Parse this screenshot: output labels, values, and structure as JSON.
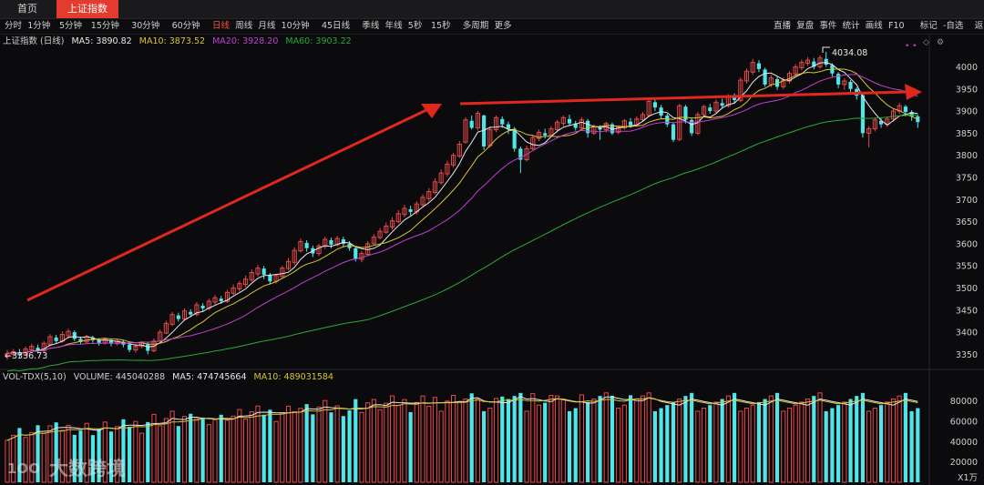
{
  "tabs": {
    "home": "首页",
    "active": "上证指数"
  },
  "periods": [
    "分时",
    "1分钟",
    "5分钟",
    "15分钟",
    "30分钟",
    "60分钟",
    "日线",
    "周线",
    "月线",
    "10分钟",
    "45日线",
    "季线",
    "年线",
    "5秒",
    "15秒",
    "多周期",
    "更多"
  ],
  "selected_period": "日线",
  "right_tools": [
    "直播",
    "复盘",
    "事件",
    "统计",
    "画线",
    "F10",
    "标记",
    "-自选",
    "返回"
  ],
  "main_legend": {
    "title": "上证指数 (日线)",
    "ma5": "MA5: 3890.82",
    "ma10": "MA10: 3873.52",
    "ma20": "MA20: 3928.20",
    "ma60": "MA60: 3903.22"
  },
  "volume_legend": {
    "title": "VOL-TDX(5,10)",
    "volume": "VOLUME: 445040288",
    "ma5": "MA5: 474745664",
    "ma10": "MA10: 489031584"
  },
  "annotations": {
    "high": "4034.08",
    "low": "3336.73"
  },
  "price_axis": [
    "4000",
    "3950",
    "3900",
    "3850",
    "3800",
    "3750",
    "3700",
    "3650",
    "3600",
    "3550",
    "3500",
    "3450",
    "3400",
    "3350"
  ],
  "volume_axis": [
    "80000",
    "60000",
    "40000",
    "20000"
  ],
  "volume_unit": "X1万",
  "watermark": "大数跨境",
  "colors": {
    "up": "#e84848",
    "down": "#4fe6ea",
    "ma5": "#e8e8e8",
    "ma10": "#d8c431",
    "ma20": "#c23ed0",
    "ma60": "#2aa83a",
    "arrow": "#e0281e",
    "tab_active": "#e33b2e"
  },
  "chart_data": {
    "type": "candlestick",
    "title": "上证指数 (日线)",
    "ylim": [
      3320,
      4040
    ],
    "high": 4034.08,
    "low": 3336.73,
    "series": [
      {
        "name": "MA5",
        "value": 3890.82
      },
      {
        "name": "MA10",
        "value": 3873.52
      },
      {
        "name": "MA20",
        "value": 3928.2
      },
      {
        "name": "MA60",
        "value": 3903.22
      }
    ],
    "candles_approx": [
      [
        3345,
        3352,
        3360,
        3338
      ],
      [
        3350,
        3356,
        3362,
        3344
      ],
      [
        3355,
        3348,
        3362,
        3342
      ],
      [
        3348,
        3362,
        3368,
        3346
      ],
      [
        3360,
        3368,
        3374,
        3356
      ],
      [
        3365,
        3358,
        3372,
        3352
      ],
      [
        3358,
        3375,
        3380,
        3355
      ],
      [
        3372,
        3390,
        3396,
        3368
      ],
      [
        3388,
        3380,
        3394,
        3374
      ],
      [
        3380,
        3395,
        3402,
        3376
      ],
      [
        3392,
        3402,
        3408,
        3386
      ],
      [
        3400,
        3385,
        3404,
        3380
      ],
      [
        3385,
        3378,
        3390,
        3372
      ],
      [
        3378,
        3390,
        3394,
        3374
      ],
      [
        3388,
        3382,
        3392,
        3376
      ],
      [
        3382,
        3376,
        3386,
        3370
      ],
      [
        3376,
        3384,
        3388,
        3372
      ],
      [
        3382,
        3374,
        3386,
        3368
      ],
      [
        3374,
        3380,
        3384,
        3370
      ],
      [
        3378,
        3372,
        3382,
        3366
      ],
      [
        3372,
        3360,
        3378,
        3355
      ],
      [
        3360,
        3368,
        3374,
        3354
      ],
      [
        3368,
        3376,
        3380,
        3364
      ],
      [
        3374,
        3358,
        3378,
        3350
      ],
      [
        3358,
        3380,
        3386,
        3355
      ],
      [
        3380,
        3400,
        3406,
        3378
      ],
      [
        3398,
        3420,
        3426,
        3396
      ],
      [
        3418,
        3440,
        3446,
        3414
      ],
      [
        3438,
        3430,
        3444,
        3424
      ],
      [
        3430,
        3448,
        3454,
        3426
      ],
      [
        3446,
        3440,
        3452,
        3434
      ],
      [
        3440,
        3462,
        3468,
        3436
      ],
      [
        3460,
        3454,
        3466,
        3448
      ],
      [
        3454,
        3470,
        3476,
        3450
      ],
      [
        3468,
        3478,
        3484,
        3462
      ],
      [
        3476,
        3470,
        3482,
        3464
      ],
      [
        3470,
        3490,
        3496,
        3466
      ],
      [
        3488,
        3500,
        3508,
        3484
      ],
      [
        3498,
        3510,
        3516,
        3492
      ],
      [
        3508,
        3520,
        3528,
        3502
      ],
      [
        3518,
        3535,
        3542,
        3514
      ],
      [
        3532,
        3545,
        3552,
        3526
      ],
      [
        3544,
        3530,
        3550,
        3520
      ],
      [
        3530,
        3515,
        3534,
        3508
      ],
      [
        3515,
        3528,
        3532,
        3510
      ],
      [
        3526,
        3545,
        3550,
        3522
      ],
      [
        3544,
        3560,
        3568,
        3540
      ],
      [
        3558,
        3585,
        3592,
        3552
      ],
      [
        3584,
        3605,
        3612,
        3580
      ],
      [
        3602,
        3590,
        3608,
        3582
      ],
      [
        3590,
        3578,
        3596,
        3570
      ],
      [
        3578,
        3595,
        3600,
        3572
      ],
      [
        3594,
        3610,
        3616,
        3588
      ],
      [
        3608,
        3598,
        3614,
        3590
      ],
      [
        3598,
        3612,
        3618,
        3594
      ],
      [
        3610,
        3600,
        3616,
        3592
      ],
      [
        3600,
        3590,
        3606,
        3584
      ],
      [
        3590,
        3565,
        3594,
        3560
      ],
      [
        3565,
        3578,
        3584,
        3558
      ],
      [
        3576,
        3600,
        3606,
        3572
      ],
      [
        3600,
        3615,
        3622,
        3596
      ],
      [
        3614,
        3628,
        3636,
        3610
      ],
      [
        3626,
        3640,
        3648,
        3622
      ],
      [
        3638,
        3652,
        3660,
        3632
      ],
      [
        3650,
        3668,
        3676,
        3646
      ],
      [
        3666,
        3680,
        3688,
        3660
      ],
      [
        3678,
        3672,
        3686,
        3664
      ],
      [
        3672,
        3690,
        3696,
        3666
      ],
      [
        3688,
        3705,
        3712,
        3682
      ],
      [
        3702,
        3718,
        3726,
        3696
      ],
      [
        3716,
        3740,
        3748,
        3712
      ],
      [
        3738,
        3760,
        3768,
        3734
      ],
      [
        3758,
        3780,
        3788,
        3752
      ],
      [
        3778,
        3800,
        3806,
        3772
      ],
      [
        3798,
        3825,
        3832,
        3794
      ],
      [
        3830,
        3880,
        3886,
        3826
      ],
      [
        3878,
        3862,
        3890,
        3858
      ],
      [
        3862,
        3895,
        3900,
        3856
      ],
      [
        3890,
        3820,
        3892,
        3812
      ],
      [
        3822,
        3858,
        3866,
        3818
      ],
      [
        3858,
        3885,
        3890,
        3852
      ],
      [
        3882,
        3870,
        3888,
        3862
      ],
      [
        3870,
        3860,
        3876,
        3848
      ],
      [
        3860,
        3815,
        3864,
        3808
      ],
      [
        3815,
        3790,
        3820,
        3760
      ],
      [
        3790,
        3815,
        3822,
        3786
      ],
      [
        3815,
        3840,
        3846,
        3810
      ],
      [
        3838,
        3852,
        3858,
        3832
      ],
      [
        3850,
        3845,
        3860,
        3838
      ],
      [
        3846,
        3860,
        3866,
        3842
      ],
      [
        3858,
        3875,
        3880,
        3852
      ],
      [
        3872,
        3885,
        3890,
        3866
      ],
      [
        3882,
        3872,
        3892,
        3866
      ],
      [
        3872,
        3862,
        3878,
        3856
      ],
      [
        3862,
        3880,
        3886,
        3858
      ],
      [
        3878,
        3850,
        3882,
        3840
      ],
      [
        3850,
        3864,
        3870,
        3846
      ],
      [
        3862,
        3858,
        3868,
        3835
      ],
      [
        3858,
        3872,
        3876,
        3852
      ],
      [
        3870,
        3850,
        3874,
        3846
      ],
      [
        3852,
        3864,
        3868,
        3848
      ],
      [
        3862,
        3878,
        3882,
        3858
      ],
      [
        3876,
        3868,
        3884,
        3862
      ],
      [
        3868,
        3882,
        3888,
        3864
      ],
      [
        3880,
        3892,
        3898,
        3876
      ],
      [
        3890,
        3922,
        3926,
        3886
      ],
      [
        3920,
        3908,
        3930,
        3900
      ],
      [
        3908,
        3890,
        3914,
        3884
      ],
      [
        3890,
        3870,
        3894,
        3864
      ],
      [
        3870,
        3835,
        3874,
        3830
      ],
      [
        3836,
        3912,
        3916,
        3832
      ],
      [
        3910,
        3880,
        3914,
        3872
      ],
      [
        3880,
        3850,
        3884,
        3844
      ],
      [
        3850,
        3892,
        3898,
        3846
      ],
      [
        3892,
        3910,
        3914,
        3886
      ],
      [
        3908,
        3900,
        3916,
        3894
      ],
      [
        3900,
        3920,
        3926,
        3896
      ],
      [
        3918,
        3912,
        3928,
        3906
      ],
      [
        3912,
        3932,
        3938,
        3908
      ],
      [
        3930,
        3925,
        3940,
        3918
      ],
      [
        3924,
        3970,
        3976,
        3920
      ],
      [
        3968,
        3990,
        3996,
        3962
      ],
      [
        3988,
        4010,
        4018,
        3982
      ],
      [
        4008,
        3995,
        4015,
        3988
      ],
      [
        3994,
        3960,
        3998,
        3955
      ],
      [
        3960,
        3975,
        3982,
        3954
      ],
      [
        3972,
        3955,
        3978,
        3948
      ],
      [
        3955,
        3970,
        3976,
        3950
      ],
      [
        3968,
        3985,
        3990,
        3962
      ],
      [
        3984,
        4000,
        4006,
        3978
      ],
      [
        3998,
        4010,
        4016,
        3992
      ],
      [
        4008,
        4015,
        4022,
        4002
      ],
      [
        4012,
        4000,
        4020,
        3994
      ],
      [
        4000,
        4020,
        4026,
        3996
      ],
      [
        4018,
        4005,
        4034,
        4000
      ],
      [
        4004,
        3985,
        4008,
        3978
      ],
      [
        3984,
        3960,
        3988,
        3952
      ],
      [
        3960,
        3968,
        3974,
        3948
      ],
      [
        3966,
        3950,
        3970,
        3942
      ],
      [
        3950,
        3935,
        3954,
        3926
      ],
      [
        3936,
        3850,
        3940,
        3840
      ],
      [
        3850,
        3860,
        3866,
        3818
      ],
      [
        3860,
        3880,
        3886,
        3854
      ],
      [
        3878,
        3870,
        3884,
        3862
      ],
      [
        3870,
        3882,
        3888,
        3864
      ],
      [
        3882,
        3900,
        3906,
        3876
      ],
      [
        3900,
        3912,
        3918,
        3894
      ],
      [
        3910,
        3898,
        3914,
        3888
      ],
      [
        3898,
        3888,
        3902,
        3878
      ],
      [
        3888,
        3875,
        3892,
        3862
      ]
    ],
    "volume_ylim": [
      0,
      95000
    ],
    "volume_unit": "X1万"
  }
}
